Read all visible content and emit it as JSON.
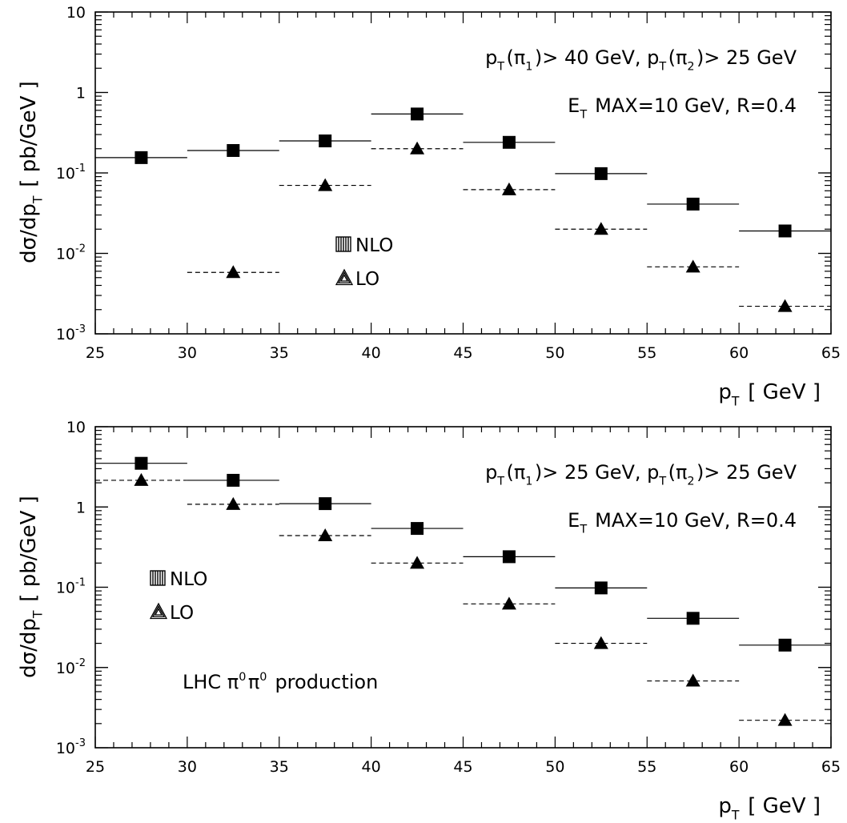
{
  "chart_data": [
    {
      "type": "scatter",
      "xlabel": "p_T [ GeV ]",
      "ylabel": "dσ/dp_T [ pb/GeV ]",
      "xlim": [
        25,
        65
      ],
      "ylim": [
        0.001,
        10
      ],
      "yscale": "log",
      "x_ticks": [
        "25",
        "30",
        "35",
        "40",
        "45",
        "50",
        "55",
        "60",
        "65"
      ],
      "y_ticks": [
        "10^-3",
        "10^-2",
        "10^-1",
        "1",
        "10"
      ],
      "annotations": [
        "p_T(π_1)> 40 GeV, p_T(π_2)> 25 GeV",
        "E_T MAX=10 GeV, R=0.4"
      ],
      "legend": {
        "placement": "center-left",
        "entries": [
          "NLO",
          "LO"
        ]
      },
      "series": [
        {
          "name": "NLO",
          "marker": "square",
          "line": "solid",
          "bins": [
            [
              25,
              30
            ],
            [
              30,
              35
            ],
            [
              35,
              40
            ],
            [
              40,
              45
            ],
            [
              45,
              50
            ],
            [
              50,
              55
            ],
            [
              55,
              60
            ],
            [
              60,
              65
            ]
          ],
          "x": [
            27.5,
            32.5,
            37.5,
            42.5,
            47.5,
            52.5,
            57.5,
            62.5
          ],
          "values": [
            0.155,
            0.19,
            0.25,
            0.54,
            0.24,
            0.098,
            0.041,
            0.019
          ]
        },
        {
          "name": "LO",
          "marker": "triangle",
          "line": "dashed",
          "bins": [
            [
              30,
              35
            ],
            [
              35,
              40
            ],
            [
              40,
              45
            ],
            [
              45,
              50
            ],
            [
              50,
              55
            ],
            [
              55,
              60
            ],
            [
              60,
              65
            ]
          ],
          "x": [
            32.5,
            37.5,
            42.5,
            47.5,
            52.5,
            57.5,
            62.5
          ],
          "values": [
            0.0058,
            0.07,
            0.2,
            0.062,
            0.02,
            0.0068,
            0.0022
          ]
        }
      ]
    },
    {
      "type": "scatter",
      "xlabel": "p_T [ GeV ]",
      "ylabel": "dσ/dp_T [ pb/GeV ]",
      "xlim": [
        25,
        65
      ],
      "ylim": [
        0.001,
        10
      ],
      "yscale": "log",
      "x_ticks": [
        "25",
        "30",
        "35",
        "40",
        "45",
        "50",
        "55",
        "60",
        "65"
      ],
      "y_ticks": [
        "10^-3",
        "10^-2",
        "10^-1",
        "1",
        "10"
      ],
      "annotations": [
        "p_T(π_1)> 25 GeV, p_T(π_2)> 25 GeV",
        "E_T MAX=10 GeV, R=0.4",
        "LHC π^0π^0 production"
      ],
      "legend": {
        "placement": "center-left",
        "entries": [
          "NLO",
          "LO"
        ]
      },
      "series": [
        {
          "name": "NLO",
          "marker": "square",
          "line": "solid",
          "bins": [
            [
              25,
              30
            ],
            [
              30,
              35
            ],
            [
              35,
              40
            ],
            [
              40,
              45
            ],
            [
              45,
              50
            ],
            [
              50,
              55
            ],
            [
              55,
              60
            ],
            [
              60,
              65
            ]
          ],
          "x": [
            27.5,
            32.5,
            37.5,
            42.5,
            47.5,
            52.5,
            57.5,
            62.5
          ],
          "values": [
            3.5,
            2.15,
            1.1,
            0.54,
            0.24,
            0.098,
            0.041,
            0.019
          ]
        },
        {
          "name": "LO",
          "marker": "triangle",
          "line": "dashed",
          "bins": [
            [
              25,
              30
            ],
            [
              30,
              35
            ],
            [
              35,
              40
            ],
            [
              40,
              45
            ],
            [
              45,
              50
            ],
            [
              50,
              55
            ],
            [
              55,
              60
            ],
            [
              60,
              65
            ]
          ],
          "x": [
            27.5,
            32.5,
            37.5,
            42.5,
            47.5,
            52.5,
            57.5,
            62.5
          ],
          "values": [
            2.15,
            1.08,
            0.44,
            0.2,
            0.062,
            0.02,
            0.0068,
            0.0022
          ]
        }
      ]
    }
  ]
}
